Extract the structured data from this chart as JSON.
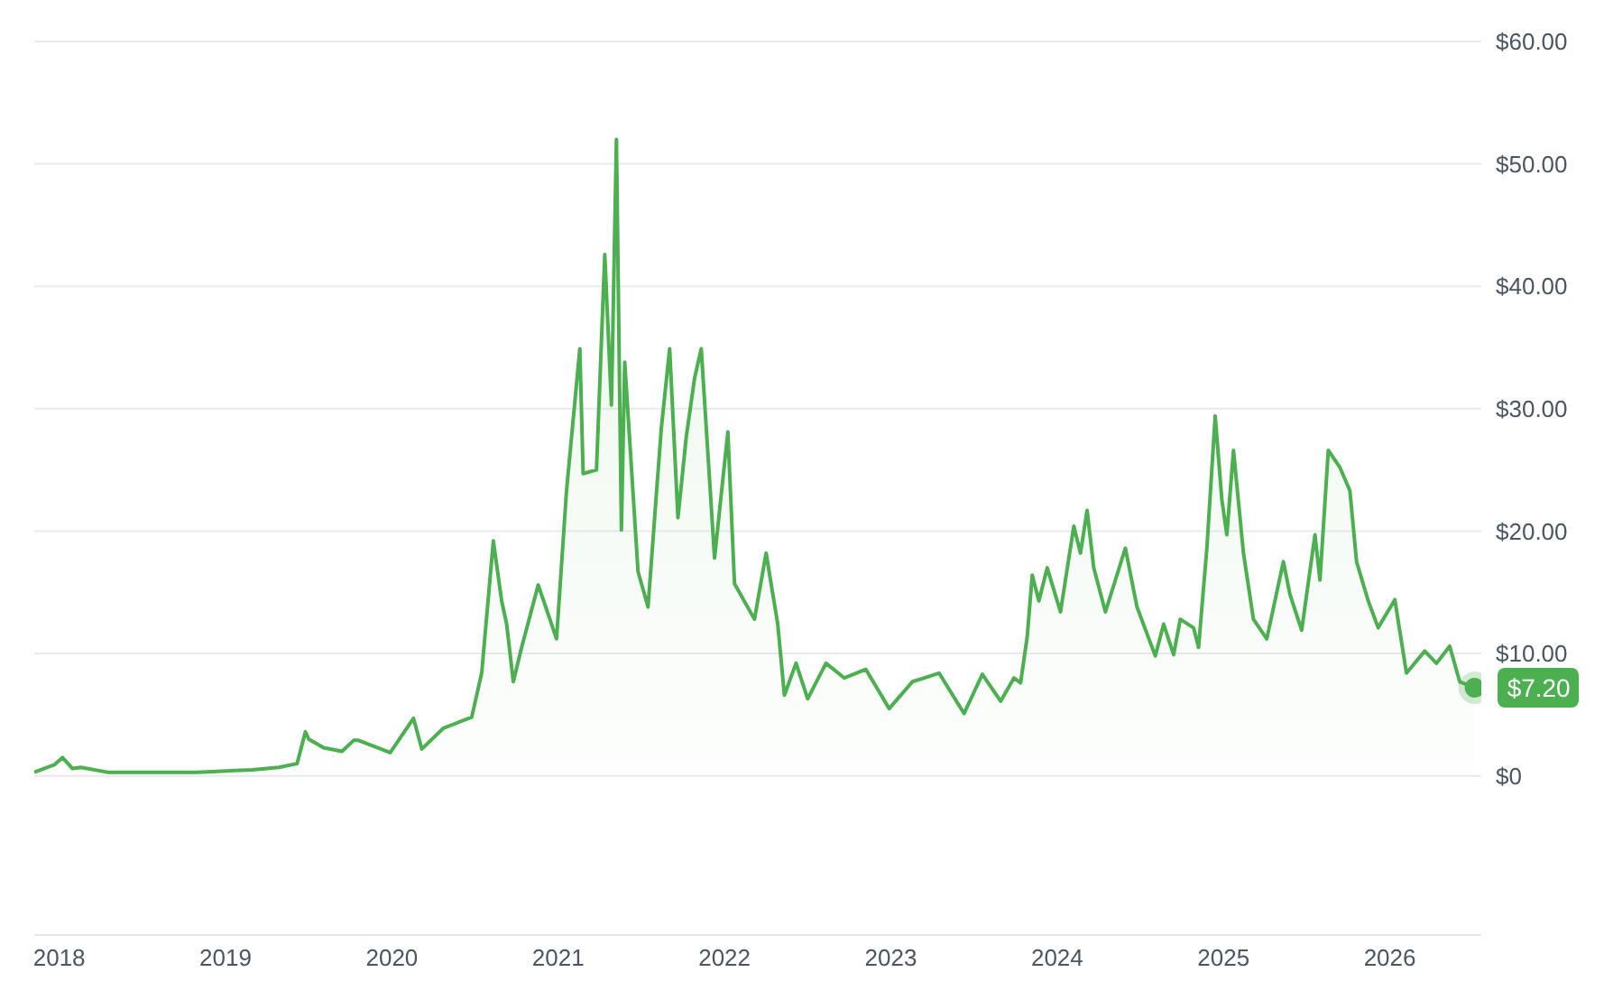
{
  "chart_data": {
    "type": "area",
    "x": [
      2017.85,
      2017.97,
      2018.02,
      2018.08,
      2018.13,
      2018.29,
      2018.51,
      2018.83,
      2019.16,
      2019.32,
      2019.43,
      2019.48,
      2019.5,
      2019.59,
      2019.7,
      2019.77,
      2019.8,
      2019.99,
      2020.13,
      2020.18,
      2020.31,
      2020.48,
      2020.54,
      2020.61,
      2020.66,
      2020.69,
      2020.73,
      2020.78,
      2020.88,
      2020.99,
      2021.05,
      2021.13,
      2021.15,
      2021.23,
      2021.28,
      2021.32,
      2021.35,
      2021.38,
      2021.4,
      2021.48,
      2021.54,
      2021.59,
      2021.62,
      2021.67,
      2021.72,
      2021.77,
      2021.82,
      2021.86,
      2021.94,
      2022.02,
      2022.06,
      2022.18,
      2022.25,
      2022.32,
      2022.36,
      2022.43,
      2022.5,
      2022.61,
      2022.72,
      2022.85,
      2022.99,
      2023.13,
      2023.29,
      2023.44,
      2023.55,
      2023.66,
      2023.74,
      2023.78,
      2023.82,
      2023.85,
      2023.89,
      2023.94,
      2024.02,
      2024.1,
      2024.14,
      2024.18,
      2024.22,
      2024.29,
      2024.41,
      2024.48,
      2024.59,
      2024.64,
      2024.7,
      2024.74,
      2024.82,
      2024.85,
      2024.9,
      2024.95,
      2024.99,
      2025.02,
      2025.06,
      2025.12,
      2025.18,
      2025.26,
      2025.36,
      2025.4,
      2025.47,
      2025.55,
      2025.58,
      2025.63,
      2025.7,
      2025.76,
      2025.8,
      2025.87,
      2025.93,
      2026.03,
      2026.1,
      2026.21,
      2026.28,
      2026.36,
      2026.42,
      2026.51
    ],
    "values": [
      0.3,
      0.9,
      1.5,
      0.6,
      0.7,
      0.3,
      0.3,
      0.3,
      0.5,
      0.7,
      1.0,
      3.6,
      3.0,
      2.3,
      2.0,
      2.9,
      2.9,
      1.9,
      4.7,
      2.2,
      3.9,
      4.8,
      8.4,
      19.2,
      14.3,
      12.4,
      7.7,
      10.5,
      15.6,
      11.2,
      23.3,
      34.9,
      24.7,
      25.0,
      42.6,
      30.3,
      52.0,
      20.1,
      33.8,
      16.7,
      13.8,
      23.0,
      28.4,
      34.9,
      21.1,
      27.7,
      32.5,
      34.9,
      17.8,
      28.1,
      15.7,
      12.8,
      18.2,
      12.4,
      6.6,
      9.2,
      6.3,
      9.2,
      8.0,
      8.7,
      5.5,
      7.7,
      8.4,
      5.1,
      8.3,
      6.1,
      8.0,
      7.6,
      11.4,
      16.4,
      14.3,
      17.0,
      13.4,
      20.4,
      18.2,
      21.7,
      17.0,
      13.4,
      18.6,
      13.8,
      9.8,
      12.4,
      9.9,
      12.8,
      12.1,
      10.5,
      18.6,
      29.4,
      22.6,
      19.7,
      26.6,
      18.2,
      12.8,
      11.2,
      17.5,
      14.8,
      11.9,
      19.7,
      16.0,
      26.6,
      25.2,
      23.3,
      17.5,
      14.3,
      12.1,
      14.4,
      8.4,
      10.2,
      9.2,
      10.6,
      7.7,
      7.2
    ],
    "value_labels": [
      null,
      null,
      null,
      null,
      null,
      null,
      null,
      null,
      null,
      null,
      null,
      null,
      null,
      null,
      null,
      null,
      null,
      null,
      null,
      null,
      null,
      null,
      null,
      null,
      null,
      null,
      null,
      null,
      null,
      null,
      null,
      null,
      null,
      null,
      null,
      null,
      null,
      null,
      null,
      null,
      null,
      null,
      null,
      null,
      null,
      null,
      null,
      null,
      null,
      null,
      null,
      null,
      null,
      null,
      null,
      null,
      null,
      null,
      null,
      null,
      null,
      null,
      null,
      null,
      null,
      null,
      null,
      null,
      null,
      null,
      null,
      null,
      null,
      null,
      null,
      null,
      null,
      null,
      null,
      null,
      null,
      null,
      null,
      null,
      null,
      null,
      null,
      null,
      null,
      null,
      null,
      null,
      null,
      null,
      null,
      null,
      null,
      null,
      null,
      null,
      null,
      null,
      null,
      null,
      null,
      null,
      null,
      null,
      null,
      null,
      null,
      "$7.20"
    ],
    "color": "#4caf50",
    "xlim": [
      2017.85,
      2026.55
    ],
    "xticks": [
      2018,
      2019,
      2020,
      2021,
      2022,
      2023,
      2024,
      2025,
      2026
    ],
    "ylim": [
      -13,
      60
    ],
    "yticks": [
      {
        "value": 0,
        "label": "$0"
      },
      {
        "value": 10,
        "label": "$10.00"
      },
      {
        "value": 20,
        "label": "$20.00"
      },
      {
        "value": 30,
        "label": "$30.00"
      },
      {
        "value": 40,
        "label": "$40.00"
      },
      {
        "value": 50,
        "label": "$50.00"
      },
      {
        "value": 60,
        "label": "$60.00"
      }
    ],
    "grid": "y",
    "line_style": "solid"
  }
}
